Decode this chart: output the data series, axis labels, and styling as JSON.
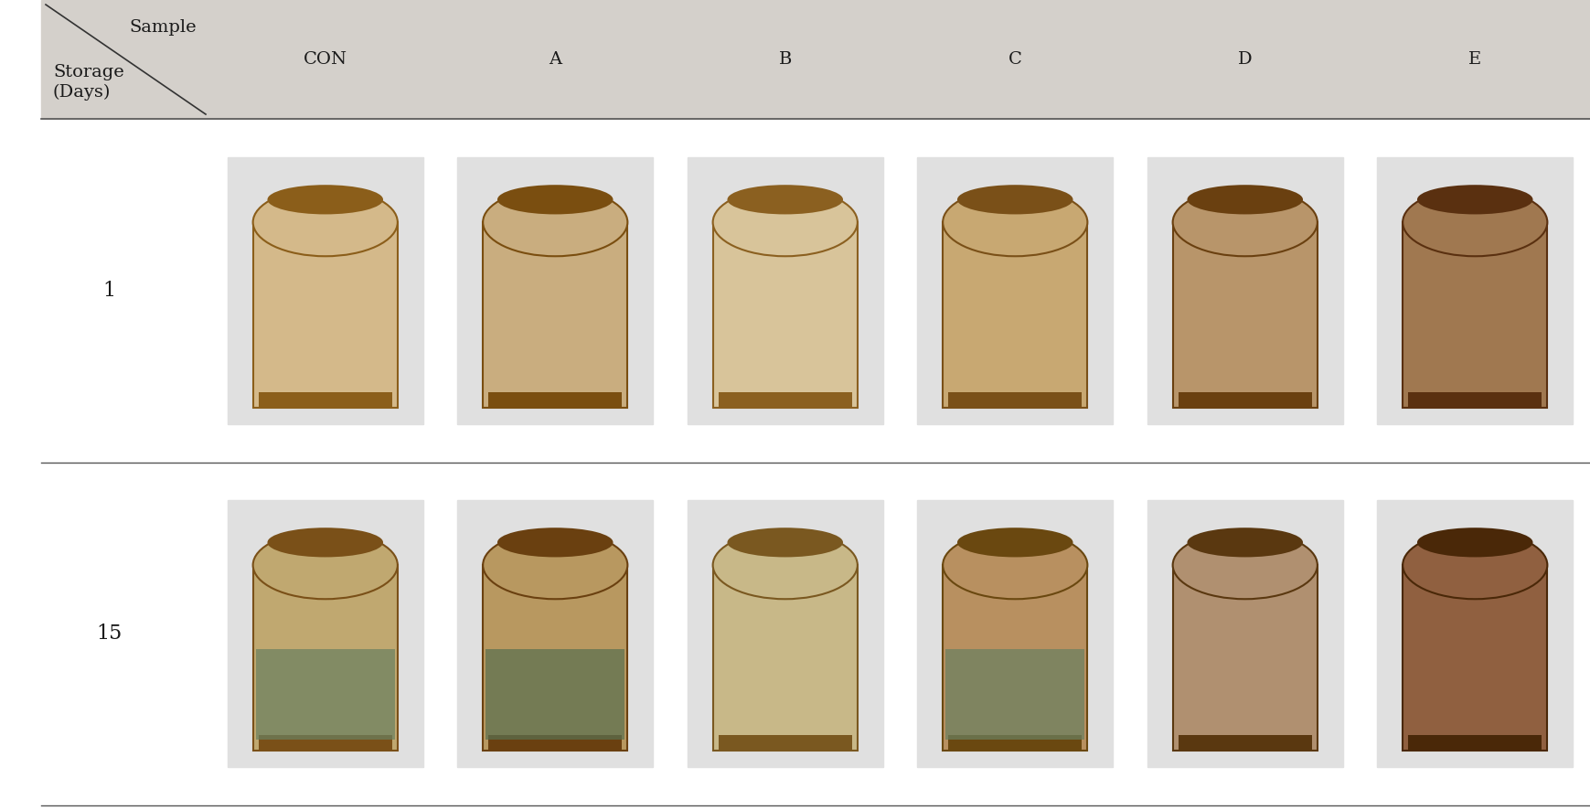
{
  "title": "",
  "background_color": "#ffffff",
  "header_bg": "#d4d0cb",
  "header_text_color": "#1a1a1a",
  "col_labels": [
    "CON",
    "A",
    "B",
    "C",
    "D",
    "E"
  ],
  "row_labels": [
    "1",
    "15"
  ],
  "corner_top_text": "Sample",
  "corner_bottom_text": "Storage\n(Days)",
  "separator_color": "#555555",
  "row1_bread_colors": [
    "#d4b98a",
    "#c9ad7f",
    "#d8c49a",
    "#c8a872",
    "#b8956a",
    "#a07850"
  ],
  "row2_bread_colors": [
    "#c0a870",
    "#b89860",
    "#c8b888",
    "#b89060",
    "#b09070",
    "#906040"
  ],
  "row1_crust_colors": [
    "#8B5E1A",
    "#7A4E10",
    "#8B6020",
    "#7A5018",
    "#6A4010",
    "#5A3010"
  ],
  "row2_crust_colors": [
    "#7A5018",
    "#6A4010",
    "#7A5820",
    "#6A4810",
    "#5A3810",
    "#4A2808"
  ],
  "mold_colors_row2": [
    "#6a8060",
    "#5a7050",
    null,
    "#6a8060",
    null,
    null
  ],
  "label_fontsize": 14,
  "header_fontsize": 14
}
